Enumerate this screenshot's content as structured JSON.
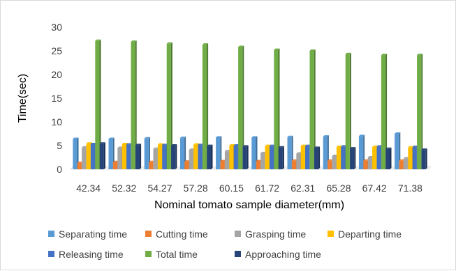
{
  "chart_data": {
    "type": "bar",
    "title": "",
    "xlabel": "Nominal tomato sample diameter(mm)",
    "ylabel": "Time(sec)",
    "ylim": [
      0,
      30
    ],
    "yticks": [
      "0",
      "5",
      "10",
      "15",
      "20",
      "25",
      "30"
    ],
    "grid": false,
    "legend_position": "bottom",
    "categories": [
      "42.34",
      "52.32",
      "54.27",
      "57.28",
      "60.15",
      "61.72",
      "62.31",
      "65.28",
      "67.42",
      "71.38"
    ],
    "series": [
      {
        "name": "Separating time",
        "color": "#5b9bd5",
        "values": [
          6.4,
          6.4,
          6.5,
          6.6,
          6.7,
          6.7,
          6.8,
          6.9,
          7.0,
          7.5
        ]
      },
      {
        "name": "Cutting time",
        "color": "#ed7d31",
        "values": [
          1.3,
          1.5,
          1.5,
          1.6,
          1.7,
          1.7,
          1.8,
          1.8,
          1.8,
          1.8
        ]
      },
      {
        "name": "Grasping time",
        "color": "#a5a5a5",
        "values": [
          4.6,
          4.5,
          4.3,
          4.1,
          3.8,
          3.4,
          3.3,
          2.8,
          2.5,
          2.3
        ]
      },
      {
        "name": "Departing time",
        "color": "#ffc000",
        "values": [
          5.4,
          5.3,
          5.2,
          5.2,
          5.0,
          4.9,
          4.9,
          4.7,
          4.7,
          4.6
        ]
      },
      {
        "name": "Releasing time",
        "color": "#4472c4",
        "values": [
          5.3,
          5.2,
          5.1,
          5.1,
          5.0,
          4.9,
          4.9,
          4.8,
          4.8,
          4.7
        ]
      },
      {
        "name": "Total time",
        "color": "#70ad47",
        "values": [
          27.1,
          26.9,
          26.5,
          26.3,
          25.8,
          25.2,
          25.0,
          24.3,
          24.1,
          24.1
        ]
      },
      {
        "name": "Approaching time",
        "color": "#264478",
        "values": [
          5.4,
          5.1,
          5.0,
          4.9,
          4.8,
          4.6,
          4.5,
          4.4,
          4.3,
          4.1
        ]
      }
    ]
  }
}
